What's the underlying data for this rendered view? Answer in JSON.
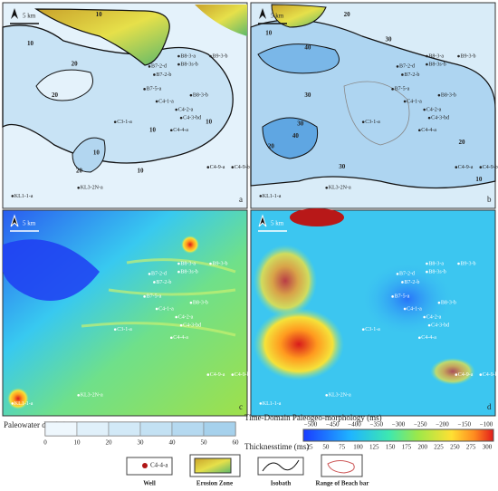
{
  "panels": [
    {
      "label": "a",
      "contours": [
        "10",
        "10",
        "20",
        "20",
        "10",
        "10",
        "10",
        "20",
        "10"
      ]
    },
    {
      "label": "b",
      "contours": [
        "10",
        "20",
        "30",
        "40",
        "30",
        "20",
        "30",
        "40",
        "30",
        "20",
        "10"
      ]
    },
    {
      "label": "c"
    },
    {
      "label": "d"
    }
  ],
  "scale": "5 km",
  "wells": [
    "B8-3-a",
    "B9-3-b",
    "B7-2-d",
    "B7-2-b",
    "B8-3s-b",
    "B7-5-a",
    "B8-3-b",
    "C4-1-a",
    "C4-2-a",
    "C4-3-bd",
    "C3-1-a",
    "C4-4-a",
    "C4-9-a",
    "C4-9-b",
    "KL3-2N-a",
    "KL1-1-a"
  ],
  "legend": {
    "depth": {
      "title": "Paleowater depth (m)",
      "ticks": [
        "0",
        "10",
        "20",
        "30",
        "40",
        "50",
        "60"
      ]
    },
    "time": {
      "title": "Time-Domain Paleogeo-morphology (ms)",
      "ticks": [
        "−500",
        "−450",
        "−400",
        "−350",
        "−300",
        "−250",
        "−200",
        "−150",
        "−100"
      ]
    },
    "thickness": {
      "title": "Thicknesstime (ms)",
      "ticks": [
        "25",
        "50",
        "75",
        "100",
        "125",
        "150",
        "175",
        "200",
        "225",
        "250",
        "275",
        "300"
      ]
    },
    "items": [
      {
        "sample": "C4-4-a",
        "label": "Well"
      },
      {
        "label": "Erosion Zone"
      },
      {
        "label": "Isobath"
      },
      {
        "label": "Range of Beach bar"
      }
    ]
  }
}
